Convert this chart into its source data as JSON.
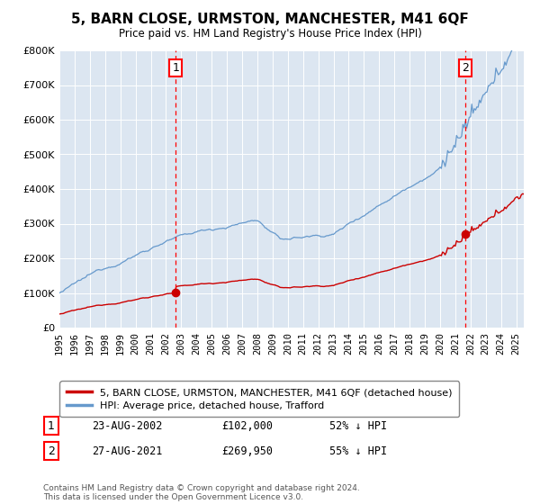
{
  "title": "5, BARN CLOSE, URMSTON, MANCHESTER, M41 6QF",
  "subtitle": "Price paid vs. HM Land Registry's House Price Index (HPI)",
  "legend_line1": "5, BARN CLOSE, URMSTON, MANCHESTER, M41 6QF (detached house)",
  "legend_line2": "HPI: Average price, detached house, Trafford",
  "marker1_label": "1",
  "marker1_date": "23-AUG-2002",
  "marker1_price": "£102,000",
  "marker1_hpi": "52% ↓ HPI",
  "marker1_year": 2002.65,
  "marker1_value": 102000,
  "marker2_label": "2",
  "marker2_date": "27-AUG-2021",
  "marker2_price": "£269,950",
  "marker2_hpi": "55% ↓ HPI",
  "marker2_year": 2021.65,
  "marker2_value": 269950,
  "price_color": "#cc0000",
  "hpi_color": "#6699cc",
  "plot_bg_color": "#dce6f1",
  "footer": "Contains HM Land Registry data © Crown copyright and database right 2024.\nThis data is licensed under the Open Government Licence v3.0.",
  "ylim": [
    0,
    800000
  ],
  "xlim": [
    1995,
    2025.5
  ]
}
